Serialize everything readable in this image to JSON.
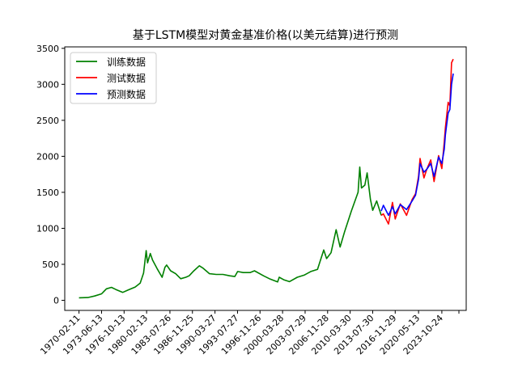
{
  "chart_data": {
    "type": "line",
    "title": "基于LSTM模型对黄金基准价格(以美元结算)进行预测",
    "xlabel": "",
    "ylabel": "",
    "ylim": [
      -140,
      3520
    ],
    "yticks": [
      0,
      500,
      1000,
      1500,
      2000,
      2500,
      3000,
      3500
    ],
    "xlim": [
      "1968-01-01",
      "2027-06-01"
    ],
    "xtick_labels": [
      "1970-02-11",
      "1973-06-13",
      "1976-10-13",
      "1980-02-13",
      "1983-07-26",
      "1986-11-25",
      "1990-03-27",
      "1993-07-27",
      "1996-11-26",
      "2000-03-28",
      "2003-07-29",
      "2006-11-28",
      "2010-03-30",
      "2013-07-30",
      "2016-11-29",
      "2020-05-13",
      "2023-10-24"
    ],
    "legend": {
      "location": "upper left",
      "entries": [
        "训练数据",
        "测试数据",
        "预测数据"
      ]
    },
    "grid": false,
    "colors": {
      "train": "#008000",
      "test": "#ff0000",
      "pred": "#0000ff"
    },
    "series": [
      {
        "name": "训练数据",
        "color": "#008000",
        "points": [
          [
            "1970-02-11",
            35
          ],
          [
            "1971-06-01",
            38
          ],
          [
            "1972-06-01",
            60
          ],
          [
            "1973-06-13",
            90
          ],
          [
            "1974-03-01",
            160
          ],
          [
            "1974-12-01",
            180
          ],
          [
            "1975-08-01",
            150
          ],
          [
            "1976-08-01",
            110
          ],
          [
            "1977-06-01",
            145
          ],
          [
            "1978-06-01",
            185
          ],
          [
            "1979-03-01",
            240
          ],
          [
            "1979-09-01",
            380
          ],
          [
            "1980-01-21",
            690
          ],
          [
            "1980-04-01",
            520
          ],
          [
            "1980-09-01",
            650
          ],
          [
            "1981-01-01",
            560
          ],
          [
            "1981-09-01",
            440
          ],
          [
            "1982-06-01",
            320
          ],
          [
            "1982-11-01",
            460
          ],
          [
            "1983-02-01",
            490
          ],
          [
            "1983-09-01",
            410
          ],
          [
            "1984-06-01",
            370
          ],
          [
            "1985-03-01",
            300
          ],
          [
            "1985-12-01",
            320
          ],
          [
            "1986-06-01",
            340
          ],
          [
            "1987-01-01",
            400
          ],
          [
            "1987-12-01",
            480
          ],
          [
            "1988-06-01",
            450
          ],
          [
            "1989-06-01",
            370
          ],
          [
            "1990-06-01",
            360
          ],
          [
            "1991-06-01",
            360
          ],
          [
            "1992-06-01",
            340
          ],
          [
            "1993-03-01",
            330
          ],
          [
            "1993-08-01",
            400
          ],
          [
            "1994-06-01",
            385
          ],
          [
            "1995-06-01",
            385
          ],
          [
            "1996-02-01",
            410
          ],
          [
            "1997-06-01",
            340
          ],
          [
            "1998-06-01",
            295
          ],
          [
            "1999-07-01",
            255
          ],
          [
            "1999-10-01",
            320
          ],
          [
            "2000-06-01",
            285
          ],
          [
            "2001-04-01",
            260
          ],
          [
            "2002-06-01",
            320
          ],
          [
            "2003-06-01",
            350
          ],
          [
            "2004-06-01",
            400
          ],
          [
            "2005-06-01",
            430
          ],
          [
            "2006-05-01",
            700
          ],
          [
            "2006-10-01",
            580
          ],
          [
            "2007-06-01",
            660
          ],
          [
            "2008-03-01",
            980
          ],
          [
            "2008-10-01",
            740
          ],
          [
            "2009-06-01",
            950
          ],
          [
            "2010-06-01",
            1240
          ],
          [
            "2011-06-01",
            1500
          ],
          [
            "2011-09-01",
            1850
          ],
          [
            "2011-12-01",
            1560
          ],
          [
            "2012-06-01",
            1600
          ],
          [
            "2012-10-01",
            1770
          ],
          [
            "2013-04-01",
            1400
          ],
          [
            "2013-07-30",
            1250
          ],
          [
            "2014-03-01",
            1380
          ],
          [
            "2014-11-01",
            1180
          ]
        ]
      },
      {
        "name": "测试数据",
        "color": "#ff0000",
        "points": [
          [
            "2014-11-01",
            1180
          ],
          [
            "2015-03-01",
            1200
          ],
          [
            "2015-12-01",
            1060
          ],
          [
            "2016-07-01",
            1360
          ],
          [
            "2016-12-01",
            1130
          ],
          [
            "2017-09-01",
            1340
          ],
          [
            "2018-08-01",
            1180
          ],
          [
            "2019-06-01",
            1400
          ],
          [
            "2019-12-01",
            1480
          ],
          [
            "2020-05-13",
            1720
          ],
          [
            "2020-08-01",
            1970
          ],
          [
            "2021-03-01",
            1700
          ],
          [
            "2021-08-01",
            1820
          ],
          [
            "2022-03-01",
            1950
          ],
          [
            "2022-09-01",
            1650
          ],
          [
            "2023-05-01",
            2010
          ],
          [
            "2023-10-24",
            1830
          ],
          [
            "2024-03-01",
            2200
          ],
          [
            "2024-05-01",
            2400
          ],
          [
            "2024-10-01",
            2750
          ],
          [
            "2025-01-01",
            2700
          ],
          [
            "2025-04-01",
            3300
          ],
          [
            "2025-07-01",
            3350
          ]
        ]
      },
      {
        "name": "预测数据",
        "color": "#0000ff",
        "points": [
          [
            "2014-11-01",
            1240
          ],
          [
            "2015-03-01",
            1320
          ],
          [
            "2015-12-01",
            1180
          ],
          [
            "2016-07-01",
            1300
          ],
          [
            "2016-12-01",
            1200
          ],
          [
            "2017-09-01",
            1330
          ],
          [
            "2018-08-01",
            1260
          ],
          [
            "2019-06-01",
            1380
          ],
          [
            "2019-12-01",
            1460
          ],
          [
            "2020-05-13",
            1680
          ],
          [
            "2020-08-01",
            1900
          ],
          [
            "2021-03-01",
            1780
          ],
          [
            "2021-08-01",
            1820
          ],
          [
            "2022-03-01",
            1900
          ],
          [
            "2022-09-01",
            1720
          ],
          [
            "2023-05-01",
            1990
          ],
          [
            "2023-10-24",
            1900
          ],
          [
            "2024-03-01",
            2100
          ],
          [
            "2024-05-01",
            2300
          ],
          [
            "2024-10-01",
            2600
          ],
          [
            "2025-01-01",
            2650
          ],
          [
            "2025-04-01",
            3000
          ],
          [
            "2025-07-01",
            3150
          ]
        ]
      }
    ]
  }
}
